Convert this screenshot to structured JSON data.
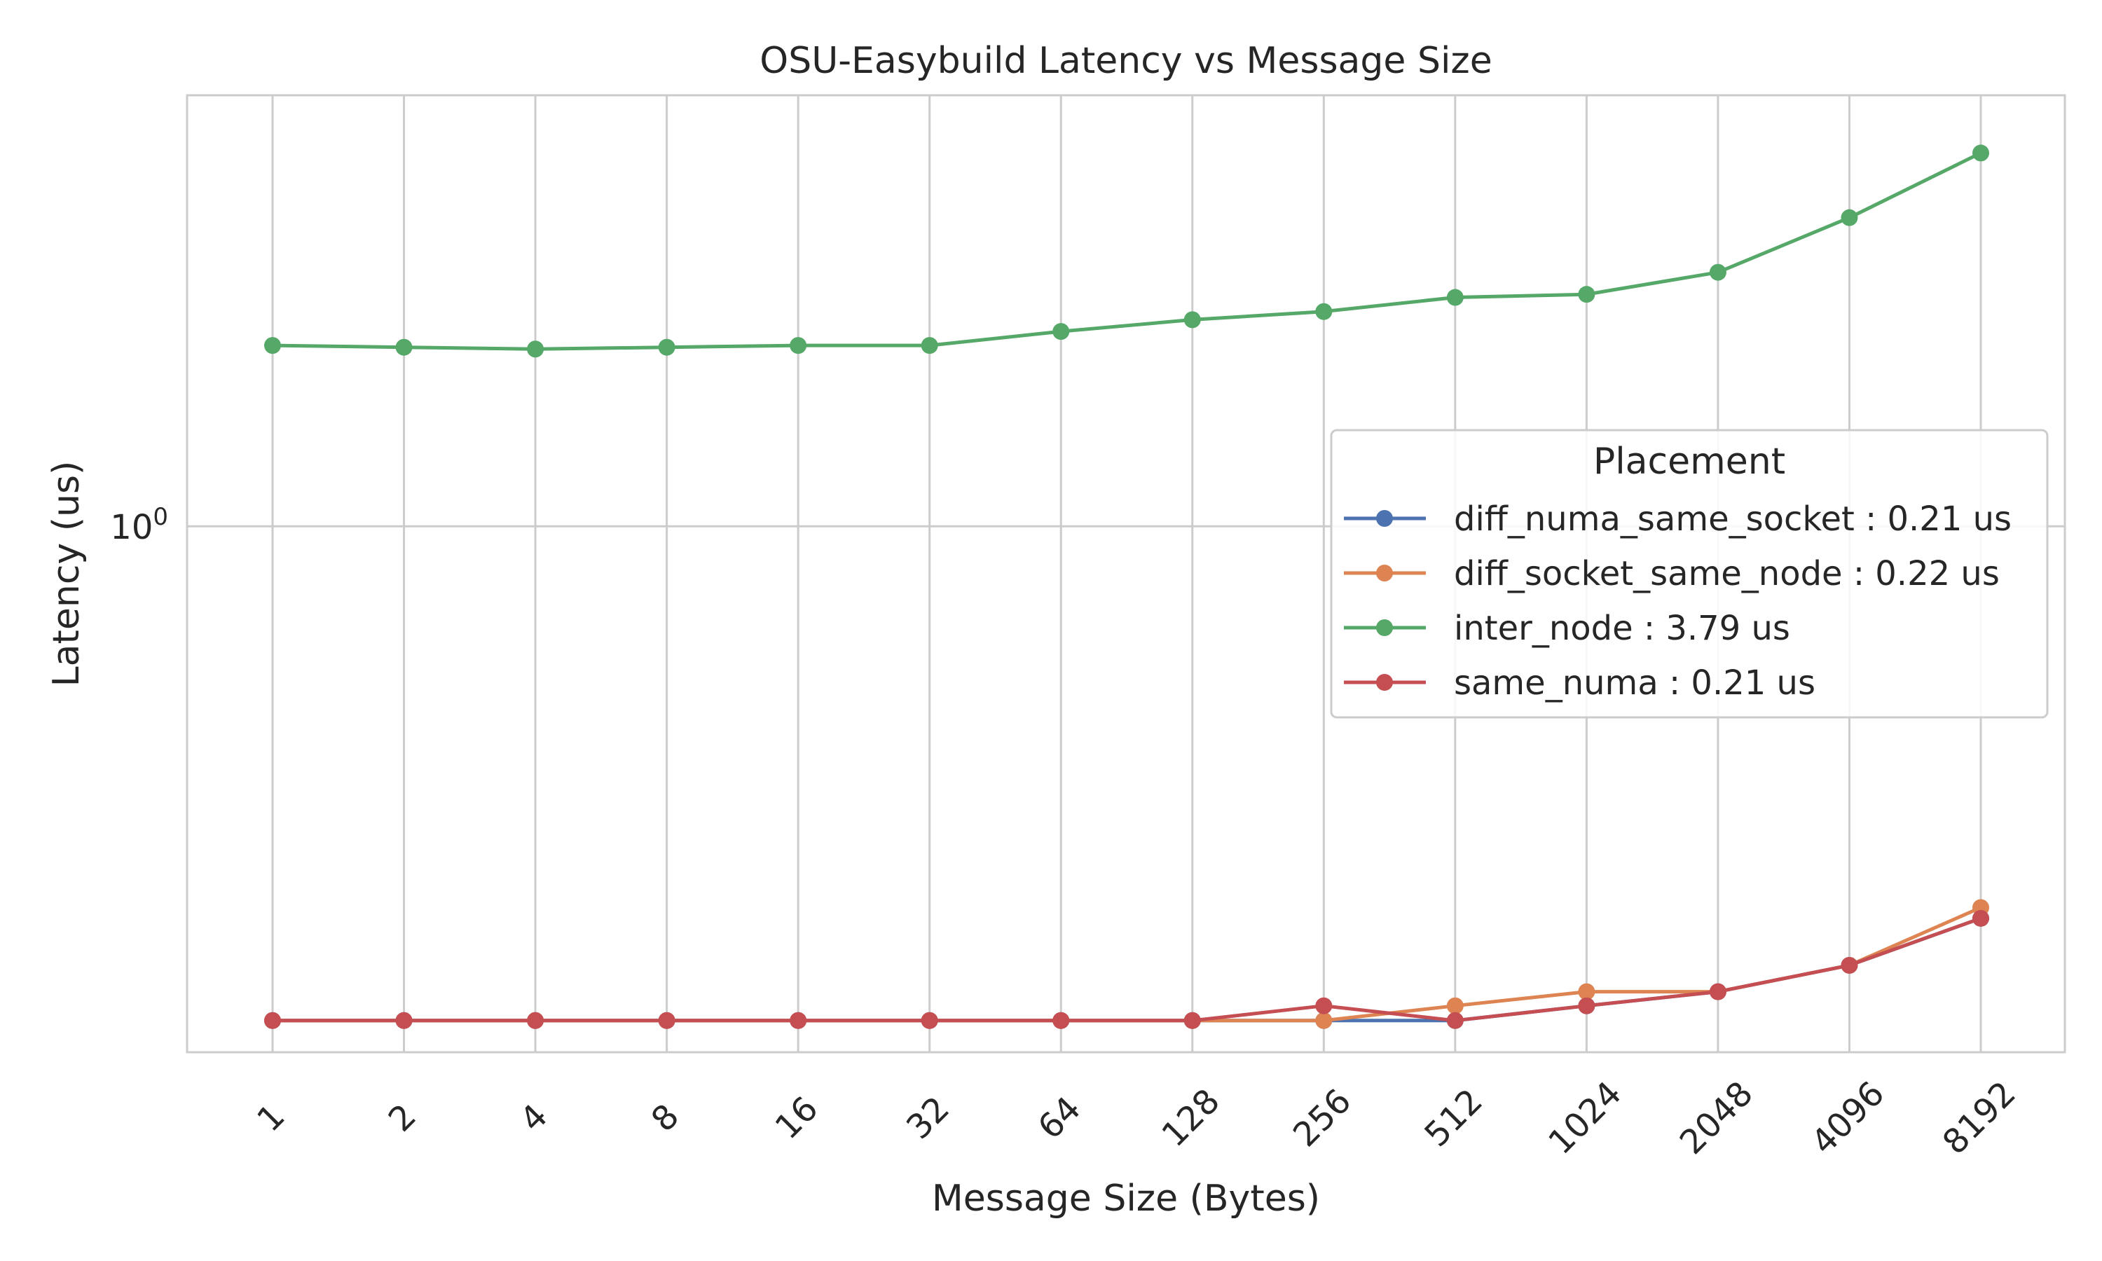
{
  "chart_data": {
    "type": "line",
    "title": "OSU-Easybuild Latency vs Message Size",
    "xlabel": "Message Size (Bytes)",
    "ylabel": "Latency (us)",
    "y_scale": "log",
    "y_tick_labels": [
      {
        "base": "10",
        "exponent": "0",
        "value": 1.0
      }
    ],
    "ylim": [
      0.19,
      3.9
    ],
    "categories": [
      "1",
      "2",
      "4",
      "8",
      "16",
      "32",
      "64",
      "128",
      "256",
      "512",
      "1024",
      "2048",
      "4096",
      "8192"
    ],
    "grid": true,
    "legend": {
      "title": "Placement",
      "position": "center-right"
    },
    "series": [
      {
        "name": "diff_numa_same_socket : 0.21 us",
        "color": "#4c72b0",
        "values": [
          0.21,
          0.21,
          0.21,
          0.21,
          0.21,
          0.21,
          0.21,
          0.21,
          0.21,
          0.21,
          0.22,
          0.23,
          0.25,
          0.29
        ]
      },
      {
        "name": "diff_socket_same_node : 0.22 us",
        "color": "#dd8452",
        "values": [
          0.21,
          0.21,
          0.21,
          0.21,
          0.21,
          0.21,
          0.21,
          0.21,
          0.21,
          0.22,
          0.23,
          0.23,
          0.25,
          0.3
        ]
      },
      {
        "name": "inter_node : 3.79 us",
        "color": "#55a868",
        "values": [
          1.77,
          1.76,
          1.75,
          1.76,
          1.77,
          1.77,
          1.85,
          1.92,
          1.97,
          2.06,
          2.08,
          2.23,
          2.65,
          3.25
        ]
      },
      {
        "name": "same_numa : 0.21 us",
        "color": "#c44e52",
        "values": [
          0.21,
          0.21,
          0.21,
          0.21,
          0.21,
          0.21,
          0.21,
          0.21,
          0.22,
          0.21,
          0.22,
          0.23,
          0.25,
          0.29
        ]
      }
    ]
  }
}
